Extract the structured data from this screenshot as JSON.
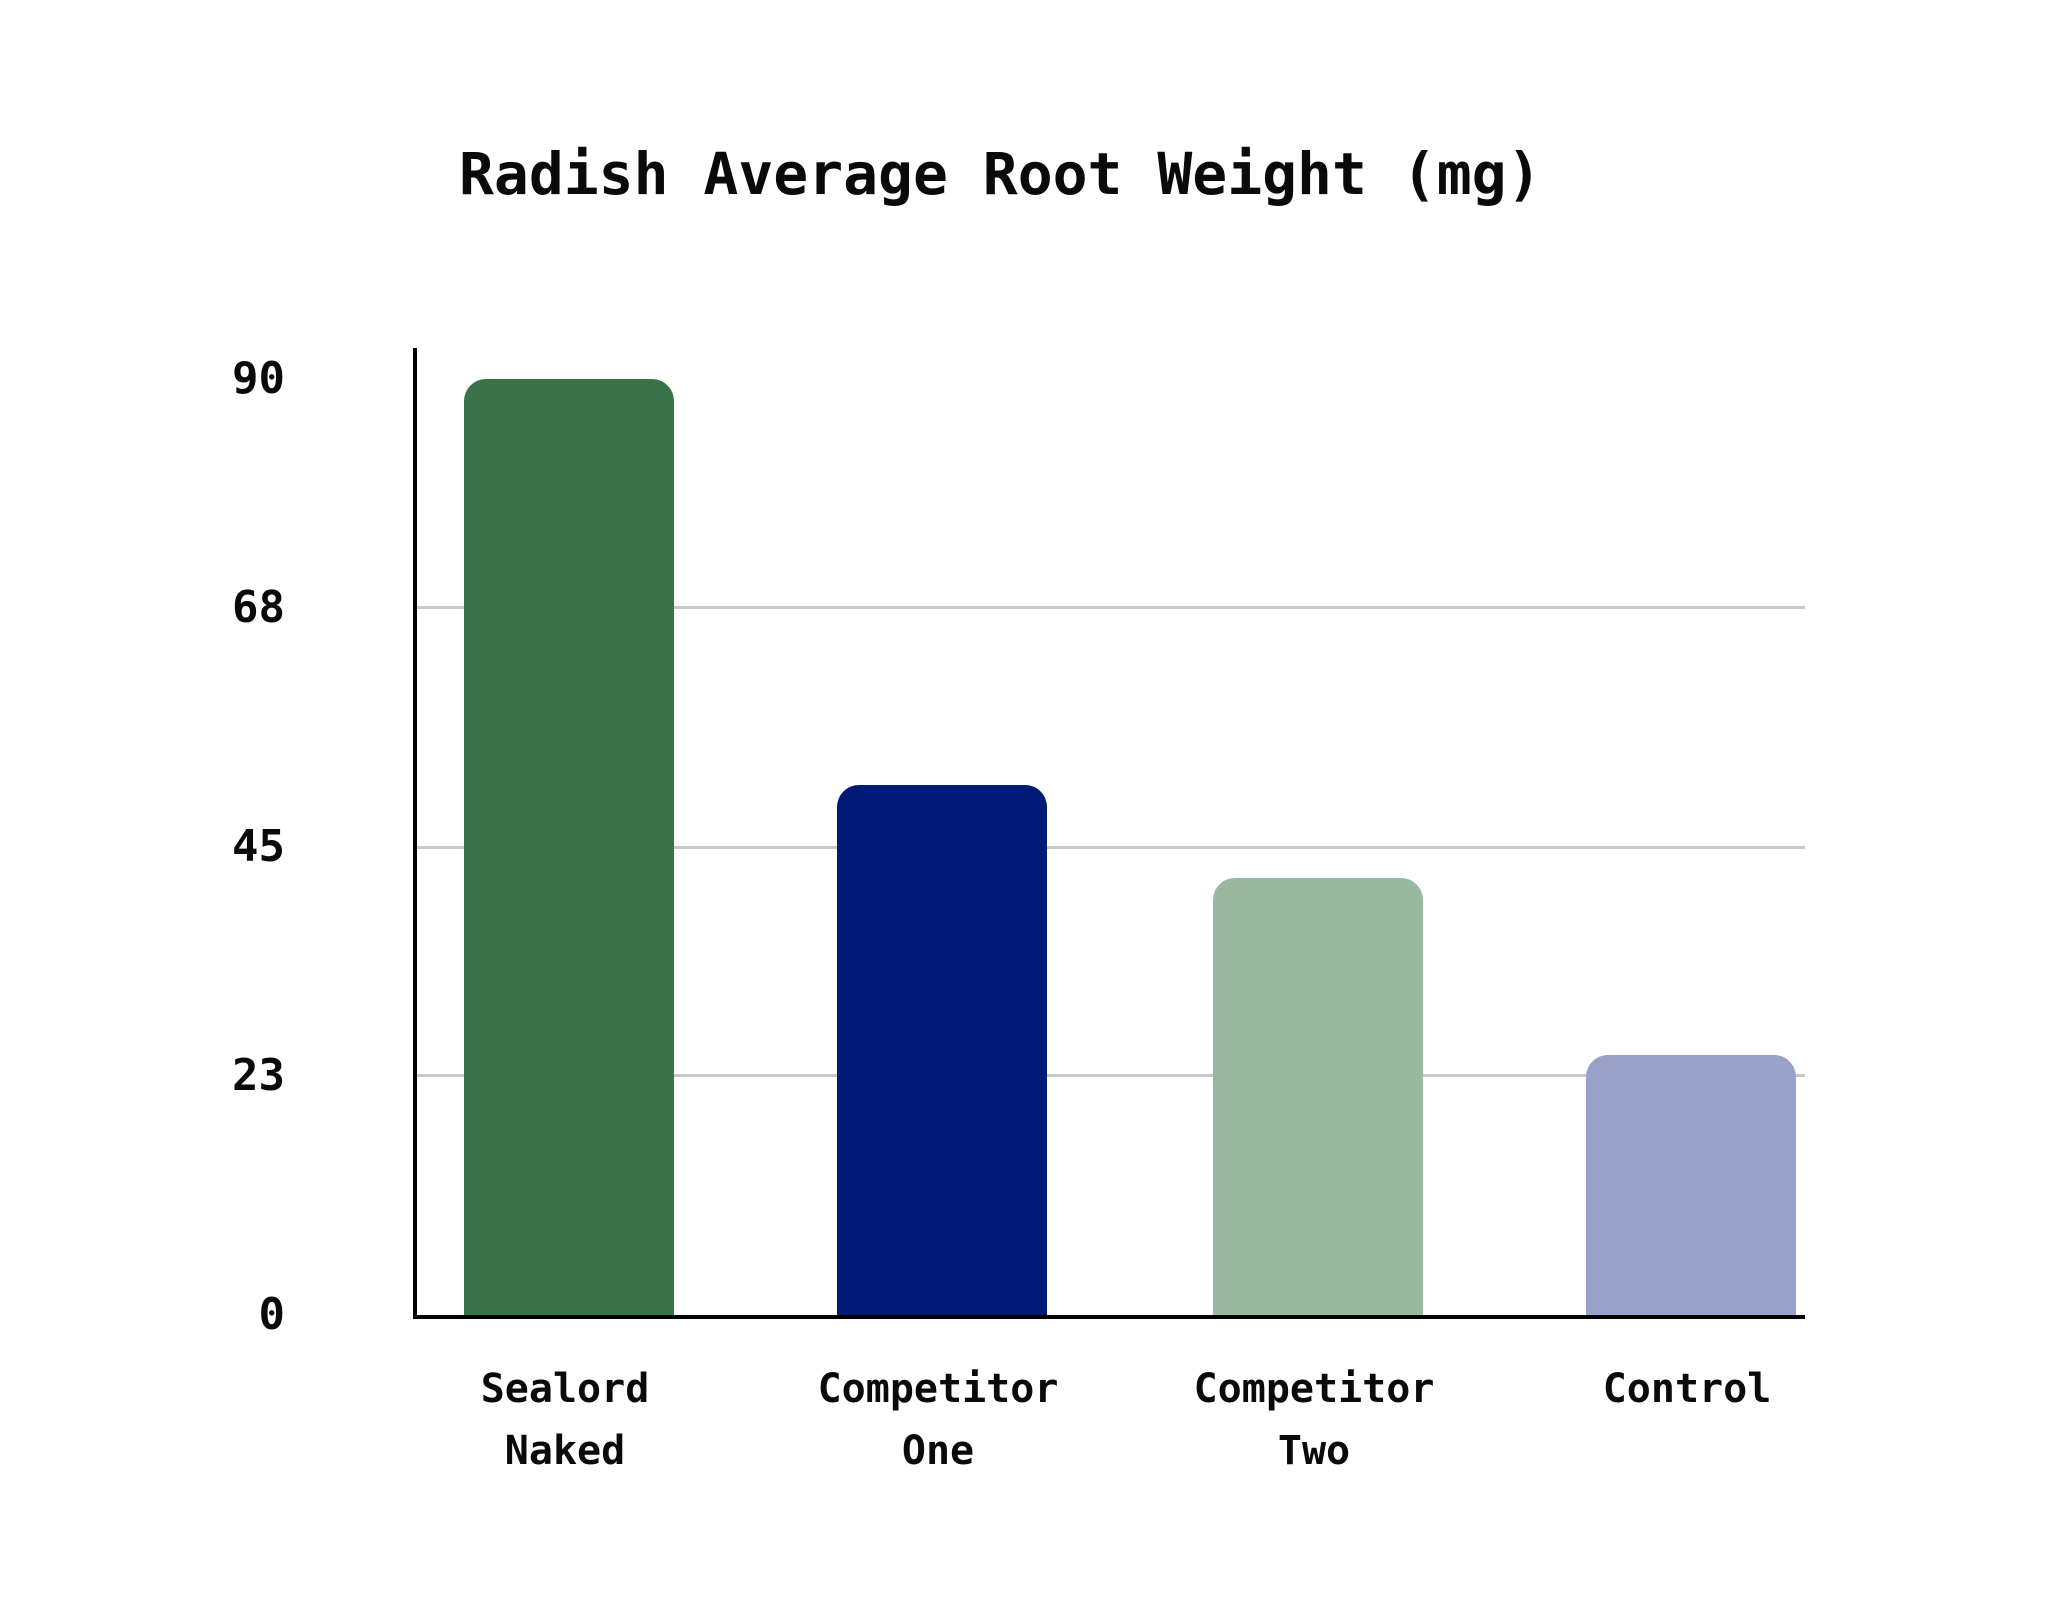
{
  "chart_data": {
    "type": "bar",
    "title": "Radish Average Root Weight (mg)",
    "categories": [
      "Sealord Naked",
      "Competitor One",
      "Competitor Two",
      "Control"
    ],
    "category_label_lines": [
      [
        "Sealord",
        "Naked"
      ],
      [
        "Competitor",
        "One"
      ],
      [
        "Competitor",
        "Two"
      ],
      [
        "Control"
      ]
    ],
    "values": [
      90,
      51,
      42,
      25
    ],
    "bar_colors": [
      "#3a7347",
      "#001b76",
      "#99b8a0",
      "#98a2c8"
    ],
    "ylim": [
      0,
      90
    ],
    "yticks": [
      90,
      68,
      45,
      23,
      0
    ],
    "gridline_values": [
      68,
      45,
      23
    ],
    "grid_on": true,
    "grid_color": "#c8c8c8",
    "axis_color": "#000000",
    "text_color": "#0a0a0a",
    "background_color": "#ffffff",
    "legend_position": "none",
    "xlabel": "",
    "ylabel": ""
  }
}
